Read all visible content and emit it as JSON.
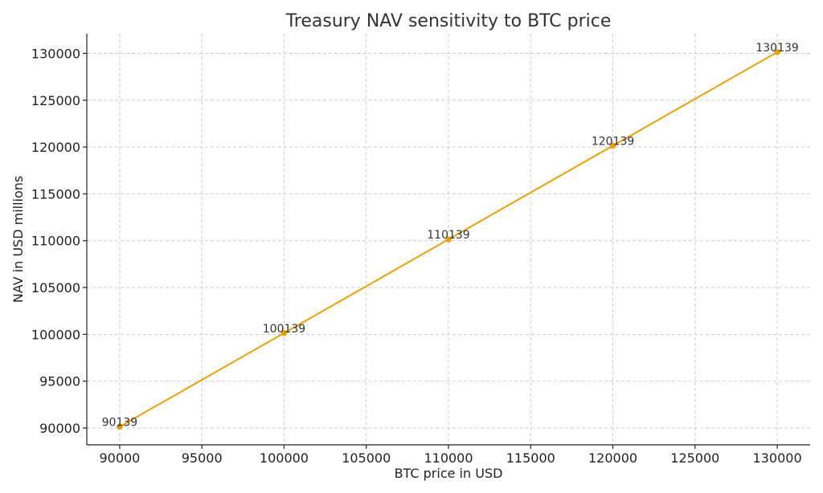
{
  "chart_data": {
    "type": "line",
    "title": "Treasury NAV sensitivity to BTC price",
    "xlabel": "BTC price in USD",
    "ylabel": "NAV in USD millions",
    "xlim": [
      88000,
      132000
    ],
    "ylim": [
      88200,
      132100
    ],
    "x_ticks": [
      90000,
      95000,
      100000,
      105000,
      110000,
      115000,
      120000,
      125000,
      130000
    ],
    "y_ticks": [
      90000,
      95000,
      100000,
      105000,
      110000,
      115000,
      120000,
      125000,
      130000
    ],
    "grid": true,
    "line_color": "#E6A10E",
    "series": [
      {
        "x": [
          90000,
          100000,
          110000,
          120000,
          130000
        ],
        "y": [
          90139,
          100139,
          110139,
          120139,
          130139
        ],
        "labels": [
          "90139",
          "100139",
          "110139",
          "120139",
          "130139"
        ]
      }
    ]
  }
}
